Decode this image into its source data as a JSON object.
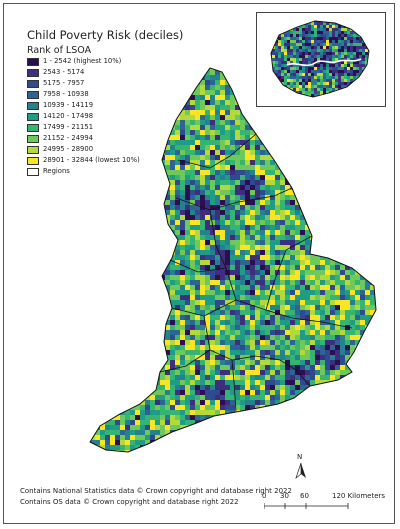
{
  "title": "Child Poverty Risk (deciles)",
  "subtitle": "Rank of LSOA",
  "legend": [
    {
      "label": "1 - 2542 (highest 10%)",
      "color": "#2b0f52"
    },
    {
      "label": "2543 - 5174",
      "color": "#3d2e7e"
    },
    {
      "label": "5175 - 7957",
      "color": "#2f4a8f"
    },
    {
      "label": "7958 - 10938",
      "color": "#2e6494"
    },
    {
      "label": "10939 - 14119",
      "color": "#25808f"
    },
    {
      "label": "14120 - 17498",
      "color": "#1f9c86"
    },
    {
      "label": "17499 - 21151",
      "color": "#36b472"
    },
    {
      "label": "21152 - 24994",
      "color": "#6ec85a"
    },
    {
      "label": "24995 - 28900",
      "color": "#b4d93d"
    },
    {
      "label": "28901 - 32844 (lowest 10%)",
      "color": "#f8e523"
    },
    {
      "label": "Regions",
      "color": "#ffffff"
    }
  ],
  "north_label": "N",
  "scale": {
    "ticks": [
      "0",
      "30",
      "60",
      "120 Kilometers"
    ]
  },
  "credits": [
    "Contains National Statistics data © Crown copyright and database right 2022",
    "Contains OS data © Crown copyright and database right 2022"
  ]
}
